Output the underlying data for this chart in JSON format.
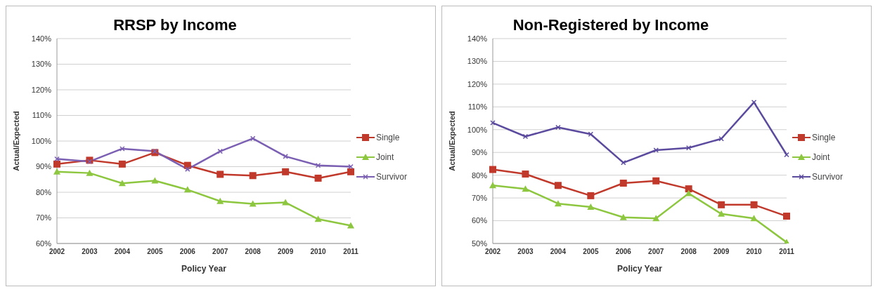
{
  "chart_data": [
    {
      "type": "line",
      "title": "RRSP by Income",
      "xlabel": "Policy Year",
      "ylabel": "Actual/Expected",
      "categories": [
        "2002",
        "2003",
        "2004",
        "2005",
        "2006",
        "2007",
        "2008",
        "2009",
        "2010",
        "2011"
      ],
      "series": [
        {
          "name": "Single",
          "color": "#c0392b",
          "marker": "square",
          "values": [
            91,
            92.5,
            91,
            95.5,
            90.5,
            87,
            86.5,
            88,
            85.5,
            88
          ]
        },
        {
          "name": "Joint",
          "color": "#8dc63f",
          "marker": "triangle",
          "values": [
            88,
            87.5,
            83.5,
            84.5,
            81,
            76.5,
            75.5,
            76,
            69.5,
            67
          ]
        },
        {
          "name": "Survivor",
          "color": "#7b5fb3",
          "marker": "cross",
          "values": [
            93,
            92,
            97,
            96,
            89,
            96,
            101,
            94,
            90.5,
            90
          ]
        }
      ],
      "ylim": [
        60,
        140
      ],
      "yticks": [
        {
          "value": 60,
          "label": "60%"
        },
        {
          "value": 70,
          "label": "70%"
        },
        {
          "value": 80,
          "label": "80%"
        },
        {
          "value": 90,
          "label": "90%"
        },
        {
          "value": 100,
          "label": "100%"
        },
        {
          "value": 110,
          "label": "110%"
        },
        {
          "value": 120,
          "label": "120%"
        },
        {
          "value": 130,
          "label": "130%"
        },
        {
          "value": 140,
          "label": "140%"
        }
      ],
      "grid": "y",
      "legend": "right"
    },
    {
      "type": "line",
      "title": "Non-Registered by Income",
      "xlabel": "Policy Year",
      "ylabel": "Actual/Expected",
      "categories": [
        "2002",
        "2003",
        "2004",
        "2005",
        "2006",
        "2007",
        "2008",
        "2009",
        "2010",
        "2011"
      ],
      "series": [
        {
          "name": "Single",
          "color": "#c0392b",
          "marker": "square",
          "values": [
            82.5,
            80.5,
            75.5,
            71,
            76.5,
            77.5,
            74,
            67,
            67,
            62
          ]
        },
        {
          "name": "Joint",
          "color": "#8dc63f",
          "marker": "triangle",
          "values": [
            75.5,
            74,
            67.5,
            66,
            61.5,
            61,
            72,
            63,
            61,
            50.5
          ]
        },
        {
          "name": "Survivor",
          "color": "#5b4a9e",
          "marker": "cross",
          "values": [
            103,
            97,
            101,
            98,
            85.5,
            91,
            92,
            96,
            112,
            89
          ]
        }
      ],
      "ylim": [
        50,
        140
      ],
      "yticks": [
        {
          "value": 50,
          "label": "50%"
        },
        {
          "value": 60,
          "label": "60%"
        },
        {
          "value": 70,
          "label": "70%"
        },
        {
          "value": 80,
          "label": "80%"
        },
        {
          "value": 90,
          "label": "90%"
        },
        {
          "value": 100,
          "label": "100%"
        },
        {
          "value": 110,
          "label": "110%"
        },
        {
          "value": 120,
          "label": "120%"
        },
        {
          "value": 130,
          "label": "130%"
        },
        {
          "value": 140,
          "label": "140%"
        }
      ],
      "grid": "y",
      "legend": "right"
    }
  ]
}
